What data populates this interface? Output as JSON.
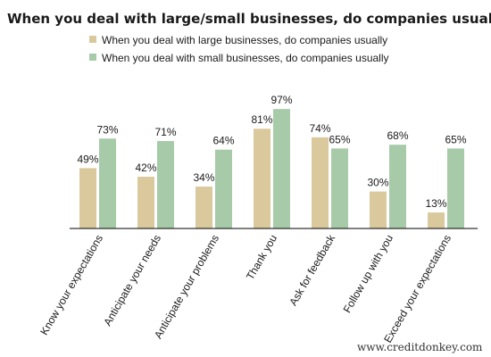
{
  "chart_data": {
    "type": "bar",
    "title": "When you deal with large/small businesses, do companies usually",
    "categories": [
      "Know your expectations",
      "Anticipate your needs",
      "Anticipate your problems",
      "Thank you",
      "Ask for feedback",
      "Follow up with you",
      "Exceed your expectations"
    ],
    "series": [
      {
        "name": "When you deal with large businesses, do companies usually",
        "values": [
          49,
          42,
          34,
          81,
          74,
          30,
          13
        ],
        "color": "#d9c99d",
        "labels": [
          "49%",
          "42%",
          "34%",
          "81%",
          "74%",
          "30%",
          "13%"
        ]
      },
      {
        "name": "When you deal with small businesses, do companies usually",
        "values": [
          73,
          71,
          64,
          97,
          65,
          68,
          65
        ],
        "color": "#a7cba9",
        "labels": [
          "73%",
          "71%",
          "64%",
          "97%",
          "65%",
          "68%",
          "65%"
        ]
      }
    ],
    "ylim": [
      0,
      100
    ],
    "grid": false,
    "legend_position": "top"
  },
  "footer": {
    "website": "www.creditdonkey.com"
  }
}
